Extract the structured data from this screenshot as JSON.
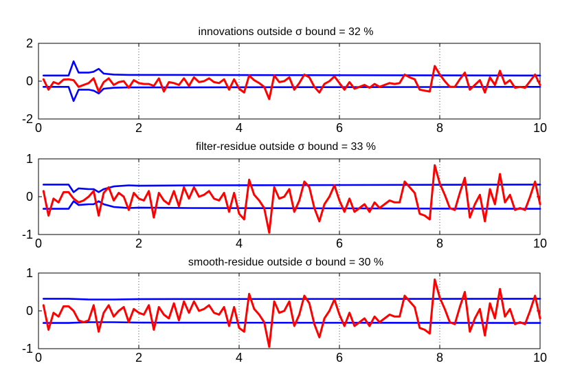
{
  "figure": {
    "background": "#ffffff"
  },
  "chart_data": [
    {
      "type": "line",
      "title": "innovations outside σ bound = 32 %",
      "xlim": [
        0,
        10
      ],
      "ylim": [
        -2,
        2
      ],
      "xticks": [
        "0",
        "2",
        "4",
        "6",
        "8",
        "10"
      ],
      "yticks": [
        "-2",
        "0",
        "2"
      ],
      "xtick_values": [
        0,
        2,
        4,
        6,
        8,
        10
      ],
      "ytick_values": [
        -2,
        0,
        2
      ],
      "grid": "x-dotted",
      "series": [
        {
          "color": "#ff0000",
          "x": [
            0.1,
            0.2,
            0.3,
            0.4,
            0.5,
            0.6,
            0.7,
            0.8,
            0.9,
            1.0,
            1.1,
            1.2,
            1.3,
            1.4,
            1.5,
            1.6,
            1.7,
            1.8,
            1.9,
            2.0,
            2.1,
            2.2,
            2.3,
            2.4,
            2.5,
            2.6,
            2.7,
            2.8,
            2.9,
            3.0,
            3.1,
            3.2,
            3.3,
            3.4,
            3.5,
            3.6,
            3.7,
            3.8,
            3.9,
            4.0,
            4.1,
            4.2,
            4.3,
            4.4,
            4.5,
            4.6,
            4.7,
            4.8,
            4.9,
            5.0,
            5.1,
            5.2,
            5.3,
            5.4,
            5.5,
            5.6,
            5.7,
            5.8,
            5.9,
            6.0,
            6.1,
            6.2,
            6.3,
            6.4,
            6.5,
            6.6,
            6.7,
            6.8,
            6.9,
            7.0,
            7.1,
            7.2,
            7.3,
            7.4,
            7.5,
            7.6,
            7.7,
            7.8,
            7.9,
            8.0,
            8.1,
            8.2,
            8.3,
            8.4,
            8.5,
            8.6,
            8.7,
            8.8,
            8.9,
            9.0,
            9.1,
            9.2,
            9.3,
            9.4,
            9.5,
            9.6,
            9.7,
            9.8,
            9.9,
            10.0
          ],
          "y": [
            0.1,
            -0.45,
            -0.05,
            -0.15,
            0.08,
            0.1,
            0.05,
            -0.3,
            -0.2,
            -0.1,
            0.15,
            -0.55,
            -0.05,
            0.15,
            -0.2,
            -0.05,
            0.0,
            -0.35,
            0.05,
            -0.1,
            -0.15,
            -0.15,
            -0.25,
            0.15,
            -0.55,
            -0.05,
            -0.1,
            -0.2,
            0.15,
            -0.25,
            0.2,
            -0.05,
            0.0,
            0.15,
            -0.05,
            -0.1,
            0.1,
            -0.45,
            0.1,
            -0.4,
            -0.6,
            0.3,
            0.05,
            -0.1,
            -0.3,
            -0.95,
            0.3,
            -0.05,
            0.0,
            0.2,
            -0.45,
            -0.1,
            0.35,
            0.2,
            -0.3,
            -0.6,
            -0.15,
            0.0,
            0.25,
            -0.1,
            -0.45,
            -0.05,
            -0.4,
            -0.3,
            -0.2,
            -0.35,
            -0.15,
            -0.3,
            -0.2,
            -0.1,
            -0.15,
            -0.1,
            0.35,
            0.2,
            0.1,
            -0.45,
            -0.5,
            -0.55,
            0.8,
            0.35,
            0.0,
            -0.3,
            -0.3,
            0.1,
            0.45,
            -0.45,
            -0.2,
            0.05,
            -0.6,
            0.2,
            -0.2,
            0.55,
            -0.15,
            0.05,
            -0.35,
            -0.3,
            -0.35,
            0.0,
            0.35,
            -0.2
          ]
        },
        {
          "color": "#0000ff",
          "x": [
            0.1,
            0.6,
            0.7,
            0.8,
            1.0,
            1.1,
            1.2,
            1.3,
            1.5,
            1.8,
            2.0,
            10.0
          ],
          "y": [
            0.3,
            0.3,
            1.05,
            0.45,
            0.45,
            0.5,
            0.65,
            0.4,
            0.35,
            0.33,
            0.33,
            0.3
          ]
        },
        {
          "color": "#0000ff",
          "x": [
            0.1,
            0.6,
            0.7,
            0.8,
            1.0,
            1.1,
            1.2,
            1.3,
            1.5,
            1.8,
            2.0,
            10.0
          ],
          "y": [
            -0.3,
            -0.3,
            -1.05,
            -0.45,
            -0.45,
            -0.5,
            -0.65,
            -0.4,
            -0.35,
            -0.33,
            -0.33,
            -0.3
          ]
        }
      ]
    },
    {
      "type": "line",
      "title": "filter-residue outside σ bound = 33 %",
      "xlim": [
        0,
        10
      ],
      "ylim": [
        -1,
        1
      ],
      "xticks": [
        "0",
        "2",
        "4",
        "6",
        "8",
        "10"
      ],
      "yticks": [
        "-1",
        "0",
        "1"
      ],
      "xtick_values": [
        0,
        2,
        4,
        6,
        8,
        10
      ],
      "ytick_values": [
        -1,
        0,
        1
      ],
      "grid": "x-dotted",
      "series": [
        {
          "color": "#ff0000",
          "x": [
            0.1,
            0.2,
            0.3,
            0.4,
            0.5,
            0.6,
            0.7,
            0.8,
            0.9,
            1.0,
            1.1,
            1.2,
            1.3,
            1.4,
            1.5,
            1.6,
            1.7,
            1.8,
            1.9,
            2.0,
            2.1,
            2.2,
            2.3,
            2.4,
            2.5,
            2.6,
            2.7,
            2.8,
            2.9,
            3.0,
            3.1,
            3.2,
            3.3,
            3.4,
            3.5,
            3.6,
            3.7,
            3.8,
            3.9,
            4.0,
            4.1,
            4.2,
            4.3,
            4.4,
            4.5,
            4.6,
            4.7,
            4.8,
            4.9,
            5.0,
            5.1,
            5.2,
            5.3,
            5.4,
            5.5,
            5.6,
            5.7,
            5.8,
            5.9,
            6.0,
            6.1,
            6.2,
            6.3,
            6.4,
            6.5,
            6.6,
            6.7,
            6.8,
            6.9,
            7.0,
            7.1,
            7.2,
            7.3,
            7.4,
            7.5,
            7.6,
            7.7,
            7.8,
            7.9,
            8.0,
            8.1,
            8.2,
            8.3,
            8.4,
            8.5,
            8.6,
            8.7,
            8.8,
            8.9,
            9.0,
            9.1,
            9.2,
            9.3,
            9.4,
            9.5,
            9.6,
            9.7,
            9.8,
            9.9,
            10.0
          ],
          "y": [
            0.15,
            -0.5,
            -0.05,
            -0.15,
            0.12,
            0.12,
            -0.05,
            -0.15,
            -0.1,
            0.0,
            0.15,
            -0.5,
            0.1,
            0.25,
            -0.1,
            0.1,
            0.0,
            -0.35,
            0.1,
            -0.05,
            -0.1,
            0.15,
            -0.55,
            0.1,
            -0.1,
            -0.2,
            0.15,
            -0.25,
            0.25,
            -0.05,
            0.25,
            0.0,
            0.05,
            0.15,
            -0.05,
            -0.1,
            0.1,
            -0.4,
            0.1,
            -0.45,
            -0.6,
            0.45,
            0.05,
            -0.1,
            -0.3,
            -0.95,
            0.25,
            -0.05,
            0.0,
            0.2,
            -0.4,
            -0.1,
            0.4,
            0.25,
            -0.3,
            -0.65,
            -0.2,
            0.0,
            0.3,
            -0.1,
            -0.4,
            -0.05,
            -0.4,
            -0.3,
            -0.2,
            -0.4,
            -0.15,
            -0.3,
            -0.2,
            -0.1,
            -0.15,
            -0.15,
            0.4,
            0.25,
            0.1,
            -0.45,
            -0.5,
            -0.6,
            0.83,
            0.35,
            0.05,
            -0.3,
            -0.35,
            0.1,
            0.5,
            -0.55,
            -0.2,
            0.05,
            -0.65,
            0.2,
            -0.2,
            0.6,
            -0.15,
            0.05,
            -0.35,
            -0.3,
            -0.35,
            0.0,
            0.4,
            -0.2
          ]
        },
        {
          "color": "#0000ff",
          "x": [
            0.1,
            0.6,
            0.7,
            0.8,
            1.0,
            1.1,
            1.2,
            1.3,
            1.5,
            1.8,
            2.0,
            3.0,
            10.0
          ],
          "y": [
            0.32,
            0.32,
            0.12,
            0.22,
            0.2,
            0.2,
            0.12,
            0.2,
            0.27,
            0.3,
            0.29,
            0.3,
            0.32
          ]
        },
        {
          "color": "#0000ff",
          "x": [
            0.1,
            0.6,
            0.7,
            0.8,
            1.0,
            1.1,
            1.2,
            1.3,
            1.5,
            1.8,
            2.0,
            3.0,
            10.0
          ],
          "y": [
            -0.32,
            -0.32,
            -0.12,
            -0.22,
            -0.2,
            -0.2,
            -0.12,
            -0.2,
            -0.27,
            -0.3,
            -0.29,
            -0.3,
            -0.32
          ]
        }
      ]
    },
    {
      "type": "line",
      "title": "smooth-residue outside σ bound = 30 %",
      "xlim": [
        0,
        10
      ],
      "ylim": [
        -1,
        1
      ],
      "xticks": [
        "0",
        "2",
        "4",
        "6",
        "8",
        "10"
      ],
      "yticks": [
        "-1",
        "0",
        "1"
      ],
      "xtick_values": [
        0,
        2,
        4,
        6,
        8,
        10
      ],
      "ytick_values": [
        -1,
        0,
        1
      ],
      "grid": "x-dotted",
      "series": [
        {
          "color": "#ff0000",
          "x": [
            0.1,
            0.2,
            0.3,
            0.4,
            0.5,
            0.6,
            0.7,
            0.8,
            0.9,
            1.0,
            1.1,
            1.2,
            1.3,
            1.4,
            1.5,
            1.6,
            1.7,
            1.8,
            1.9,
            2.0,
            2.1,
            2.2,
            2.3,
            2.4,
            2.5,
            2.6,
            2.7,
            2.8,
            2.9,
            3.0,
            3.1,
            3.2,
            3.3,
            3.4,
            3.5,
            3.6,
            3.7,
            3.8,
            3.9,
            4.0,
            4.1,
            4.2,
            4.3,
            4.4,
            4.5,
            4.6,
            4.7,
            4.8,
            4.9,
            5.0,
            5.1,
            5.2,
            5.3,
            5.4,
            5.5,
            5.6,
            5.7,
            5.8,
            5.9,
            6.0,
            6.1,
            6.2,
            6.3,
            6.4,
            6.5,
            6.6,
            6.7,
            6.8,
            6.9,
            7.0,
            7.1,
            7.2,
            7.3,
            7.4,
            7.5,
            7.6,
            7.7,
            7.8,
            7.9,
            8.0,
            8.1,
            8.2,
            8.3,
            8.4,
            8.5,
            8.6,
            8.7,
            8.8,
            8.9,
            9.0,
            9.1,
            9.2,
            9.3,
            9.4,
            9.5,
            9.6,
            9.7,
            9.8,
            9.9,
            10.0
          ],
          "y": [
            0.15,
            -0.5,
            -0.05,
            -0.15,
            0.12,
            0.12,
            0.0,
            -0.25,
            -0.3,
            -0.25,
            0.15,
            -0.55,
            -0.05,
            0.15,
            -0.15,
            0.0,
            0.1,
            -0.3,
            0.05,
            -0.05,
            -0.1,
            0.15,
            -0.5,
            0.1,
            -0.1,
            -0.2,
            0.2,
            -0.25,
            0.25,
            -0.05,
            0.25,
            0.0,
            0.05,
            0.15,
            -0.05,
            -0.1,
            0.1,
            -0.4,
            0.1,
            -0.45,
            -0.55,
            0.45,
            0.05,
            -0.1,
            -0.3,
            -0.95,
            0.25,
            -0.05,
            0.0,
            0.25,
            -0.4,
            -0.1,
            0.4,
            0.2,
            -0.35,
            -0.7,
            -0.2,
            0.0,
            0.3,
            -0.1,
            -0.4,
            -0.05,
            -0.4,
            -0.3,
            -0.2,
            -0.4,
            -0.15,
            -0.3,
            -0.2,
            -0.1,
            -0.15,
            -0.15,
            0.4,
            0.25,
            0.1,
            -0.45,
            -0.5,
            -0.6,
            0.83,
            0.35,
            0.05,
            -0.3,
            -0.35,
            0.1,
            0.5,
            -0.55,
            -0.2,
            0.05,
            -0.65,
            0.2,
            -0.2,
            0.58,
            -0.15,
            0.05,
            -0.35,
            -0.3,
            -0.35,
            0.0,
            0.4,
            -0.2
          ]
        },
        {
          "color": "#0000ff",
          "x": [
            0.1,
            0.6,
            1.0,
            1.5,
            2.0,
            10.0
          ],
          "y": [
            0.32,
            0.32,
            0.3,
            0.3,
            0.31,
            0.32
          ]
        },
        {
          "color": "#0000ff",
          "x": [
            0.1,
            0.6,
            1.0,
            1.5,
            2.0,
            10.0
          ],
          "y": [
            -0.32,
            -0.32,
            -0.3,
            -0.3,
            -0.31,
            -0.32
          ]
        }
      ]
    }
  ]
}
